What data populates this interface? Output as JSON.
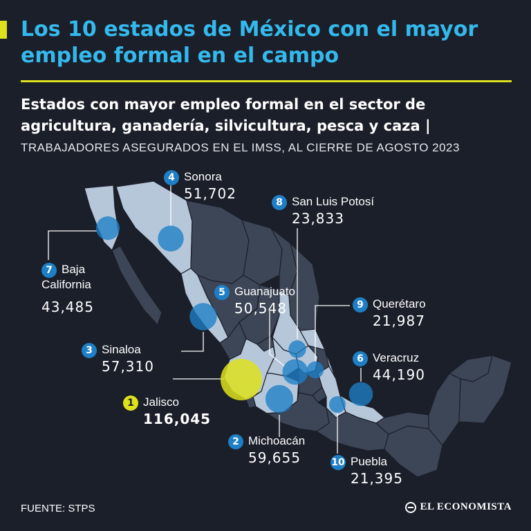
{
  "header": {
    "title": "Los 10 estados de México con el mayor empleo formal en el campo",
    "subtitle": "Estados con mayor empleo formal en el sector de agricultura, ganadería, silvicultura, pesca y caza |",
    "note": "TRABAJADORES ASEGURADOS EN EL IMSS, AL CIERRE DE AGOSTO 2023"
  },
  "footer": {
    "source": "FUENTE: STPS",
    "brand": "EL ECONOMISTA"
  },
  "colors": {
    "background": "#1b1f2a",
    "title": "#34b9ec",
    "accent": "#dde21c",
    "bubble": "#1e7fc6",
    "highlight_state": "#b6c7da",
    "other_states": "#3d4656"
  },
  "chart_data": {
    "type": "bubble-map",
    "title": "Los 10 estados de México con el mayor empleo formal en el campo",
    "unit": "trabajadores asegurados en el IMSS",
    "states": [
      {
        "rank": "1",
        "name": "Jalisco",
        "value": 116045,
        "label": "116,045"
      },
      {
        "rank": "2",
        "name": "Michoacán",
        "value": 59655,
        "label": "59,655"
      },
      {
        "rank": "3",
        "name": "Sinaloa",
        "value": 57310,
        "label": "57,310"
      },
      {
        "rank": "4",
        "name": "Sonora",
        "value": 51702,
        "label": "51,702"
      },
      {
        "rank": "5",
        "name": "Guanajuato",
        "value": 50548,
        "label": "50,548"
      },
      {
        "rank": "6",
        "name": "Veracruz",
        "value": 44190,
        "label": "44,190"
      },
      {
        "rank": "7",
        "name": "Baja California",
        "value": 43485,
        "label": "43,485"
      },
      {
        "rank": "8",
        "name": "San Luis Potosí",
        "value": 23833,
        "label": "23,833"
      },
      {
        "rank": "9",
        "name": "Querétaro",
        "value": 21987,
        "label": "21,987"
      },
      {
        "rank": "10",
        "name": "Puebla",
        "value": 21395,
        "label": "21,395"
      }
    ]
  }
}
